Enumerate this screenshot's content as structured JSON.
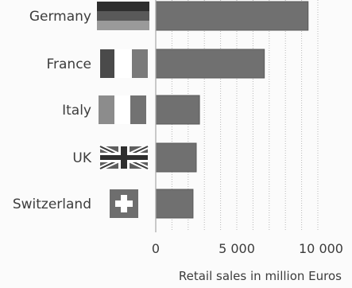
{
  "chart_data": {
    "type": "bar",
    "orientation": "horizontal",
    "categories": [
      "Germany",
      "France",
      "Italy",
      "UK",
      "Switzerland"
    ],
    "values": [
      9400,
      6700,
      2700,
      2500,
      2300
    ],
    "flag_icons": [
      "germany-flag-icon",
      "france-flag-icon",
      "italy-flag-icon",
      "uk-flag-icon",
      "switzerland-flag-icon"
    ],
    "xticks": [
      0,
      5000,
      10000
    ],
    "xtick_labels": [
      "0",
      "5 000",
      "10 000"
    ],
    "xlim": [
      0,
      10000
    ],
    "xlabel": "Retail sales in million  Euros",
    "grid": true,
    "colors": {
      "bar": "#707070",
      "background": "#fbfbfb"
    }
  }
}
